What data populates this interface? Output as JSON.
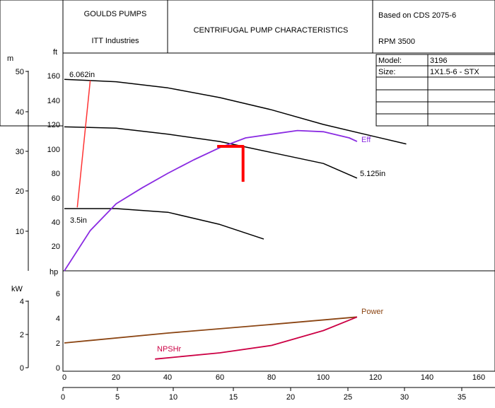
{
  "header": {
    "company": "GOULDS PUMPS",
    "parent": "ITT Industries",
    "title": "CENTRIFUGAL PUMP CHARACTERISTICS",
    "based_on": "Based on CDS 2075-6",
    "rpm": "RPM  3500",
    "model_label": "Model:",
    "model_value": "3196",
    "size_label": "Size:",
    "size_value": "1X1.5-6  - STX"
  },
  "chart_data": [
    {
      "type": "line",
      "id": "head-capacity",
      "ylabel_left": "m",
      "ylabel_right": "ft",
      "ylim_ft": [
        0,
        160
      ],
      "ylim_m": [
        0,
        50
      ],
      "ft_ticks": [
        "160",
        "140",
        "120",
        "100",
        "80",
        "60",
        "40",
        "20"
      ],
      "m_ticks": [
        "50",
        "40",
        "30",
        "20",
        "10"
      ],
      "series": [
        {
          "name": "6.062in",
          "x": [
            0,
            20,
            40,
            60,
            80,
            100,
            120,
            132
          ],
          "y": [
            157,
            155,
            150,
            142,
            132,
            120,
            110,
            104
          ]
        },
        {
          "name": "5.125in",
          "x": [
            0,
            20,
            40,
            60,
            80,
            100,
            113
          ],
          "y": [
            118,
            117,
            112,
            106,
            97,
            88,
            76
          ]
        },
        {
          "name": "3.5in",
          "x": [
            0,
            20,
            40,
            60,
            77
          ],
          "y": [
            51,
            51,
            48,
            38,
            26
          ]
        },
        {
          "name": "Eff",
          "x": [
            0,
            10,
            20,
            30,
            40,
            50,
            60,
            70,
            80,
            90,
            100,
            110,
            113
          ],
          "y": [
            0,
            33,
            55,
            68,
            80,
            91,
            101,
            109,
            112,
            115,
            114,
            109,
            106
          ]
        },
        {
          "name": "",
          "x": [
            5,
            10
          ],
          "y": [
            52,
            156
          ],
          "color": "#ff3333"
        }
      ],
      "annotations": [
        {
          "text": "6.062in"
        },
        {
          "text": "5.125in"
        },
        {
          "text": "3.5in"
        },
        {
          "text": "Eff"
        }
      ],
      "bep_marker": {
        "x": [
          59,
          69,
          69
        ],
        "y": [
          102,
          102,
          73
        ],
        "color": "#ff0000"
      }
    },
    {
      "type": "line",
      "id": "power-npsh",
      "ylabel_left": "kW",
      "ylabel_right": "hp",
      "ylim_hp": [
        0,
        8
      ],
      "hp_ticks": [
        "6",
        "4",
        "2",
        "0"
      ],
      "kw_ticks": [
        "4",
        "2",
        "0"
      ],
      "series": [
        {
          "name": "Power",
          "x": [
            0,
            40,
            80,
            113
          ],
          "y": [
            2.0,
            2.8,
            3.5,
            4.1
          ],
          "color": "#8b4513"
        },
        {
          "name": "NPSHr",
          "x": [
            35,
            60,
            80,
            100,
            113
          ],
          "y": [
            0.7,
            1.2,
            1.8,
            3.0,
            4.1
          ],
          "color": "#cc0044"
        }
      ]
    }
  ],
  "x_axis_gpm": {
    "ticks": [
      "0",
      "20",
      "40",
      "60",
      "80",
      "100",
      "120",
      "140",
      "160"
    ]
  },
  "x_axis_m3h": {
    "ticks": [
      "0",
      "5",
      "10",
      "15",
      "20",
      "25",
      "30",
      "35"
    ]
  },
  "colors": {
    "line": "#000000",
    "efficiency": "#8a2be2",
    "power": "#8b4513",
    "npshr": "#cc0044",
    "marker": "#ff0000"
  }
}
